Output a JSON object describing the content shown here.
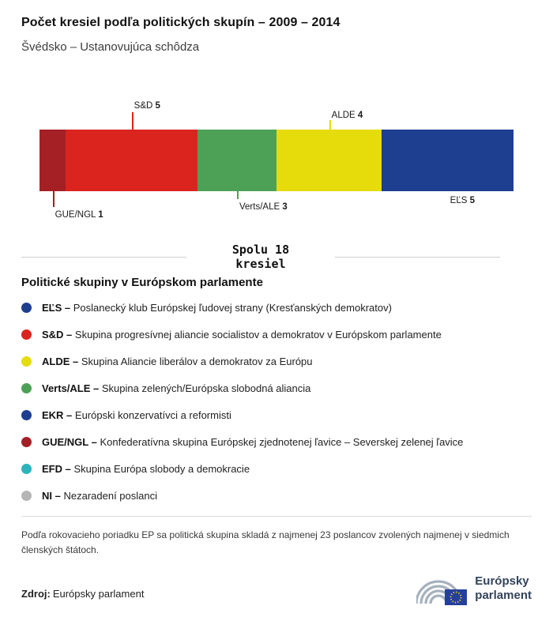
{
  "header": {
    "title": "Počet kresiel podľa politických skupín – 2009 – 2014",
    "subtitle": "Švédsko – Ustanovujúca schôdza"
  },
  "chart_data": {
    "type": "bar",
    "variant": "horizontal-stacked-single-bar",
    "title": "Počet kresiel podľa politických skupín – 2009 – 2014",
    "total": 18,
    "total_label": "Spolu 18\nkresiel",
    "categories": [
      "GUE/NGL",
      "S&D",
      "Verts/ALE",
      "ALDE",
      "EĽS"
    ],
    "values": [
      1,
      5,
      3,
      4,
      5
    ],
    "segments": [
      {
        "name": "GUE/NGL",
        "value": 1,
        "color": "#a42025"
      },
      {
        "name": "S&D",
        "value": 5,
        "color": "#dc241f"
      },
      {
        "name": "Verts/ALE",
        "value": 3,
        "color": "#4da157"
      },
      {
        "name": "ALDE",
        "value": 4,
        "color": "#e6dc0c"
      },
      {
        "name": "EĽS",
        "value": 5,
        "color": "#1e3e90"
      }
    ]
  },
  "legend": {
    "heading": "Politické skupiny v Európskom parlamente",
    "items": [
      {
        "id": "els",
        "abbr": "EĽS –",
        "desc": "Poslanecký klub Európskej ľudovej strany (Kresťanských demokratov)",
        "color": "#1e3e90"
      },
      {
        "id": "sd",
        "abbr": "S&D –",
        "desc": "Skupina progresívnej aliancie socialistov a demokratov v Európskom parlamente",
        "color": "#dc241f"
      },
      {
        "id": "alde",
        "abbr": "ALDE –",
        "desc": "Skupina Aliancie liberálov a demokratov za Európu",
        "color": "#e6dc0c"
      },
      {
        "id": "verts-ale",
        "abbr": "Verts/ALE –",
        "desc": "Skupina zelených/Európska slobodná aliancia",
        "color": "#4da157"
      },
      {
        "id": "ekr",
        "abbr": "EKR –",
        "desc": "Európski konzervatívci a reformisti",
        "color": "#1e3e90"
      },
      {
        "id": "gue-ngl",
        "abbr": "GUE/NGL –",
        "desc": "Konfederatívna skupina Európskej zjednotenej ľavice – Severskej zelenej ľavice",
        "color": "#a42025"
      },
      {
        "id": "efd",
        "abbr": "EFD –",
        "desc": "Skupina Európa slobody a demokracie",
        "color": "#2ab5bc"
      },
      {
        "id": "ni",
        "abbr": "NI –",
        "desc": "Nezaradení poslanci",
        "color": "#b5b5b5"
      }
    ]
  },
  "footer": {
    "note": "Podľa rokovacieho poriadku EP sa politická skupina skladá z najmenej 23 poslancov zvolených najmenej v siedmich členských štátoch.",
    "source_label": "Zdroj:",
    "source_name": "Európsky parlament",
    "logo_line1": "Európsky",
    "logo_line2": "parlament"
  }
}
